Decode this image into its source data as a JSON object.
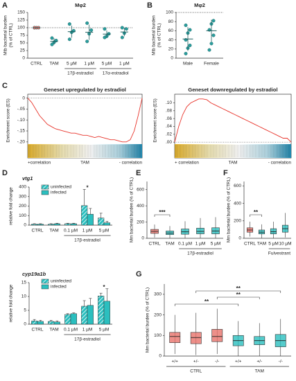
{
  "chart_data": [
    {
      "panel": "A",
      "type": "dot",
      "title": "Mφ2",
      "ylabel": [
        "Mtb bacterial burden",
        "(% of CTRL)"
      ],
      "categories": [
        "CTRL",
        "TAM",
        "5 µM",
        "1 µM",
        "5 µM",
        "1 µM"
      ],
      "group_labels": [
        "17β-estradiol",
        "17α-estradiol"
      ],
      "points": [
        [
          100,
          100,
          100,
          100
        ],
        [
          45,
          52,
          58,
          66
        ],
        [
          62,
          85,
          90,
          112
        ],
        [
          55,
          80,
          92,
          115
        ],
        [
          68,
          72,
          80,
          96
        ],
        [
          68,
          82,
          96,
          100
        ]
      ],
      "values": [
        100,
        55,
        87,
        85,
        79,
        86
      ],
      "errors": [
        0,
        10,
        20,
        25,
        12,
        14
      ],
      "colors": [
        "#e8736b",
        "#2a9d9d",
        "#2a9d9d",
        "#2a9d9d",
        "#2a9d9d",
        "#2a9d9d"
      ],
      "refline": 100,
      "ylim": [
        0,
        150
      ],
      "yticks": [
        0,
        25,
        50,
        75,
        100,
        125,
        150
      ]
    },
    {
      "panel": "B",
      "type": "dot",
      "title": "Mφ2",
      "ylabel": [
        "Mtb bacterial burden",
        "(% of CTRL)"
      ],
      "categories": [
        "Male",
        "Female"
      ],
      "points": [
        [
          10,
          22,
          28,
          40,
          55,
          62,
          72
        ],
        [
          18,
          32,
          50,
          62,
          75,
          82
        ]
      ],
      "values": [
        42,
        60
      ],
      "errors": [
        26,
        24
      ],
      "colors": [
        "#2a9d9d",
        "#2a9d9d"
      ],
      "refline": 100,
      "ylim": [
        0,
        100
      ],
      "yticks": [
        0,
        20,
        40,
        60,
        80,
        100
      ]
    },
    {
      "panel": "C",
      "type": "line",
      "title": "Geneset upregulated by estradiol",
      "ylabel": [
        "Enrichment score (ES)"
      ],
      "values": [
        0,
        -0.02,
        -0.05,
        -0.08,
        -0.1,
        -0.12,
        -0.13,
        -0.14,
        -0.145,
        -0.15,
        -0.155,
        -0.16,
        -0.16,
        -0.165,
        -0.17,
        -0.17,
        -0.175,
        -0.18,
        -0.175,
        -0.18,
        -0.185,
        -0.19,
        -0.19,
        -0.195,
        -0.2,
        -0.2,
        -0.19,
        -0.15,
        -0.08,
        0
      ],
      "color": "#e8332a",
      "refline": 0,
      "ylim": [
        -0.21,
        0.005
      ],
      "yticks": [
        {
          "value": -0.2,
          "label": "-.20"
        },
        {
          "value": -0.15,
          "label": "-.15"
        },
        {
          "value": -0.1,
          "label": "-.10"
        },
        {
          "value": -0.05,
          "label": "-.05"
        },
        0
      ],
      "xlabels": [
        "+correlation",
        "TAM",
        "- correlation"
      ]
    },
    {
      "type": "line",
      "title": "Geneset downregulated by estradiol",
      "ylabel": [
        "Enrichment score (ES)"
      ],
      "values": [
        0,
        0.04,
        0.07,
        0.09,
        0.1,
        0.105,
        0.11,
        0.11,
        0.108,
        0.1,
        0.095,
        0.09,
        0.085,
        0.08,
        0.075,
        0.07,
        0.065,
        0.06,
        0.055,
        0.05,
        0.045,
        0.04,
        0.035,
        0.03,
        0.025,
        0.02,
        0.015,
        0.01,
        0.01,
        0
      ],
      "color": "#e8332a",
      "refline": 0,
      "ylim": [
        -0.005,
        0.115
      ],
      "yticks": [
        {
          "value": 0,
          "label": ".00"
        },
        {
          "value": 0.02,
          "label": ".02"
        },
        {
          "value": 0.04,
          "label": ".04"
        },
        {
          "value": 0.06,
          "label": ".06"
        },
        {
          "value": 0.08,
          "label": ".08"
        },
        {
          "value": 0.1,
          "label": ".10"
        }
      ],
      "xlabels": [
        "+ correlation",
        "TAM",
        "- correlation"
      ]
    },
    {
      "panel": "D",
      "type": "bar",
      "title": "vtg1",
      "ylabel": [
        "relative fold change"
      ],
      "categories": [
        "CTRL",
        "TAM",
        "0.1 µM",
        "1 µM",
        "5 µM"
      ],
      "group_labels": [
        "17β-estradiol"
      ],
      "series": [
        {
          "name": "uninfected",
          "color": "#2bbfbf",
          "values": [
            10,
            10,
            15,
            205,
            75
          ],
          "errors": [
            5,
            5,
            5,
            170,
            50
          ]
        },
        {
          "name": "infected",
          "color": "#2bbfbf",
          "values": [
            10,
            15,
            15,
            115,
            25
          ],
          "errors": [
            5,
            5,
            5,
            60,
            15
          ]
        }
      ],
      "ylim": [
        0,
        400
      ],
      "yticks": [
        0,
        100,
        200,
        300,
        400
      ],
      "annotations": [
        "*"
      ]
    },
    {
      "type": "bar",
      "title": "cyp19a1b",
      "ylabel": [
        "relative fold change"
      ],
      "categories": [
        "CTRL",
        "TAM",
        "0.1 µM",
        "1 µM",
        "5 µM"
      ],
      "group_labels": [
        "17β-estradiol"
      ],
      "series": [
        {
          "name": "uninfected",
          "color": "#2bbfbf",
          "values": [
            1.2,
            1.0,
            3.5,
            6.5,
            10.2
          ],
          "errors": [
            0.5,
            0.4,
            0.3,
            2,
            1
          ]
        },
        {
          "name": "infected",
          "color": "#2bbfbf",
          "values": [
            1.0,
            0.8,
            3.8,
            6.8,
            8.3
          ],
          "errors": [
            0.4,
            0.4,
            0.3,
            2.5,
            4.5
          ]
        }
      ],
      "ylim": [
        0,
        15
      ],
      "yticks": [
        0,
        5,
        10,
        15
      ],
      "annotations": [
        "*"
      ]
    },
    {
      "panel": "E",
      "type": "box",
      "ylabel": [
        "Mm bacterial burden (% of CTRL)"
      ],
      "categories": [
        "CTRL",
        "TAM",
        "0.1 µM",
        "1 µM",
        "5 µM"
      ],
      "group_labels": [
        "17β-estradiol"
      ],
      "boxes": [
        {
          "q1": 60,
          "median": 85,
          "q3": 110,
          "whisker_low": 10,
          "whisker_high": 170
        },
        {
          "q1": 45,
          "median": 65,
          "q3": 90,
          "whisker_low": 0,
          "whisker_high": 150
        },
        {
          "q1": 50,
          "median": 80,
          "q3": 115,
          "whisker_low": 0,
          "whisker_high": 210
        },
        {
          "q1": 55,
          "median": 85,
          "q3": 125,
          "whisker_low": 0,
          "whisker_high": 250
        },
        {
          "q1": 55,
          "median": 90,
          "q3": 130,
          "whisker_low": 0,
          "whisker_high": 260
        }
      ],
      "colors": [
        "#e8736b",
        "#2bbfbf",
        "#2bbfbf",
        "#2bbfbf",
        "#2bbfbf"
      ],
      "ylim": [
        0,
        700
      ],
      "yticks": [
        0,
        200,
        400,
        600
      ],
      "annotations": [
        "***"
      ]
    },
    {
      "panel": "F",
      "type": "box",
      "ylabel": [
        "Mm bacterial burden (% of CTRL)"
      ],
      "categories": [
        "CTRL",
        "TAM",
        "5 µM",
        "10 µM"
      ],
      "group_labels": [
        "Fulvestrant"
      ],
      "boxes": [
        {
          "q1": 70,
          "median": 95,
          "q3": 120,
          "whisker_low": 20,
          "whisker_high": 190
        },
        {
          "q1": 50,
          "median": 70,
          "q3": 95,
          "whisker_low": 0,
          "whisker_high": 160
        },
        {
          "q1": 50,
          "median": 75,
          "q3": 110,
          "whisker_low": 0,
          "whisker_high": 190
        },
        {
          "q1": 70,
          "median": 110,
          "q3": 150,
          "whisker_low": 10,
          "whisker_high": 290
        }
      ],
      "colors": [
        "#e8736b",
        "#2bbfbf",
        "#2bbfbf",
        "#2bbfbf"
      ],
      "ylim": [
        0,
        650
      ],
      "yticks": [
        0,
        200,
        400,
        600
      ],
      "annotations": [
        "**"
      ]
    },
    {
      "panel": "G",
      "type": "box",
      "ylabel": [
        "Mm bacterial burden (% of CTRL)"
      ],
      "categories": [
        "+/+",
        "+/-",
        "-/-",
        "+/+",
        "+/-",
        "-/-"
      ],
      "group_labels": [
        "CTRL",
        "TAM"
      ],
      "boxes": [
        {
          "q1": 65,
          "median": 95,
          "q3": 115,
          "whisker_low": 10,
          "whisker_high": 200
        },
        {
          "q1": 60,
          "median": 90,
          "q3": 115,
          "whisker_low": 5,
          "whisker_high": 210
        },
        {
          "q1": 70,
          "median": 95,
          "q3": 130,
          "whisker_low": 10,
          "whisker_high": 230
        },
        {
          "q1": 50,
          "median": 75,
          "q3": 100,
          "whisker_low": 0,
          "whisker_high": 170
        },
        {
          "q1": 55,
          "median": 75,
          "q3": 95,
          "whisker_low": 0,
          "whisker_high": 160
        },
        {
          "q1": 45,
          "median": 75,
          "q3": 105,
          "whisker_low": 0,
          "whisker_high": 180
        }
      ],
      "colors": [
        "#e8736b",
        "#e8736b",
        "#e8736b",
        "#2bbfbf",
        "#2bbfbf",
        "#2bbfbf"
      ],
      "ylim": [
        0,
        350
      ],
      "yticks": [
        0,
        100,
        200,
        300
      ],
      "annotations": [
        "**",
        "**",
        "**"
      ]
    }
  ]
}
